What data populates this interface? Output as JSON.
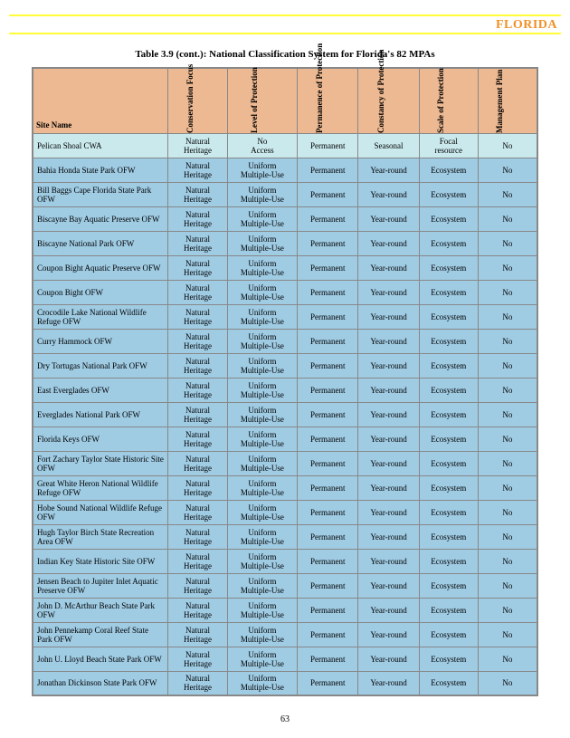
{
  "header": {
    "state": "FLORIDA"
  },
  "caption": "Table 3.9 (cont.): National Classification System for Florida's 82 MPAs",
  "columns": [
    "Site Name",
    "Conservation Focus",
    "Level of Protection",
    "Permanence of Protection",
    "Constancy of Protection",
    "Scale of Protection",
    "Management Plan"
  ],
  "rows": [
    {
      "highlight": true,
      "c": [
        "Pelican Shoal CWA",
        "Natural Heritage",
        "No Access",
        "Permanent",
        "Seasonal",
        "Focal resource",
        "No"
      ]
    },
    {
      "c": [
        "Bahia Honda State Park OFW",
        "Natural Heritage",
        "Uniform Multiple-Use",
        "Permanent",
        "Year-round",
        "Ecosystem",
        "No"
      ]
    },
    {
      "c": [
        "Bill Baggs Cape Florida State Park OFW",
        "Natural Heritage",
        "Uniform Multiple-Use",
        "Permanent",
        "Year-round",
        "Ecosystem",
        "No"
      ]
    },
    {
      "c": [
        "Biscayne Bay Aquatic Preserve OFW",
        "Natural Heritage",
        "Uniform Multiple-Use",
        "Permanent",
        "Year-round",
        "Ecosystem",
        "No"
      ]
    },
    {
      "c": [
        "Biscayne National Park OFW",
        "Natural Heritage",
        "Uniform Multiple-Use",
        "Permanent",
        "Year-round",
        "Ecosystem",
        "No"
      ]
    },
    {
      "c": [
        "Coupon Bight Aquatic Preserve OFW",
        "Natural Heritage",
        "Uniform Multiple-Use",
        "Permanent",
        "Year-round",
        "Ecosystem",
        "No"
      ]
    },
    {
      "c": [
        "Coupon Bight OFW",
        "Natural Heritage",
        "Uniform Multiple-Use",
        "Permanent",
        "Year-round",
        "Ecosystem",
        "No"
      ]
    },
    {
      "c": [
        "Crocodile Lake National Wildlife Refuge OFW",
        "Natural Heritage",
        "Uniform Multiple-Use",
        "Permanent",
        "Year-round",
        "Ecosystem",
        "No"
      ]
    },
    {
      "c": [
        "Curry Hammock OFW",
        "Natural Heritage",
        "Uniform Multiple-Use",
        "Permanent",
        "Year-round",
        "Ecosystem",
        "No"
      ]
    },
    {
      "c": [
        "Dry Tortugas National Park OFW",
        "Natural Heritage",
        "Uniform Multiple-Use",
        "Permanent",
        "Year-round",
        "Ecosystem",
        "No"
      ]
    },
    {
      "c": [
        "East Everglades OFW",
        "Natural Heritage",
        "Uniform Multiple-Use",
        "Permanent",
        "Year-round",
        "Ecosystem",
        "No"
      ]
    },
    {
      "c": [
        "Everglades National Park OFW",
        "Natural Heritage",
        "Uniform Multiple-Use",
        "Permanent",
        "Year-round",
        "Ecosystem",
        "No"
      ]
    },
    {
      "c": [
        "Florida Keys OFW",
        "Natural Heritage",
        "Uniform Multiple-Use",
        "Permanent",
        "Year-round",
        "Ecosystem",
        "No"
      ]
    },
    {
      "c": [
        "Fort Zachary Taylor State Historic Site OFW",
        "Natural Heritage",
        "Uniform Multiple-Use",
        "Permanent",
        "Year-round",
        "Ecosystem",
        "No"
      ]
    },
    {
      "c": [
        "Great White Heron National Wildlife Refuge OFW",
        "Natural Heritage",
        "Uniform Multiple-Use",
        "Permanent",
        "Year-round",
        "Ecosystem",
        "No"
      ]
    },
    {
      "c": [
        "Hobe Sound National Wildlife Refuge OFW",
        "Natural Heritage",
        "Uniform Multiple-Use",
        "Permanent",
        "Year-round",
        "Ecosystem",
        "No"
      ]
    },
    {
      "c": [
        "Hugh Taylor Birch State Recreation Area OFW",
        "Natural Heritage",
        "Uniform Multiple-Use",
        "Permanent",
        "Year-round",
        "Ecosystem",
        "No"
      ]
    },
    {
      "c": [
        "Indian Key State Historic Site OFW",
        "Natural Heritage",
        "Uniform Multiple-Use",
        "Permanent",
        "Year-round",
        "Ecosystem",
        "No"
      ]
    },
    {
      "c": [
        "Jensen Beach to Jupiter Inlet Aquatic Preserve OFW",
        "Natural Heritage",
        "Uniform Multiple-Use",
        "Permanent",
        "Year-round",
        "Ecosystem",
        "No"
      ]
    },
    {
      "c": [
        "John D. McArthur Beach State Park OFW",
        "Natural Heritage",
        "Uniform Multiple-Use",
        "Permanent",
        "Year-round",
        "Ecosystem",
        "No"
      ]
    },
    {
      "c": [
        "John Pennekamp Coral Reef State Park OFW",
        "Natural Heritage",
        "Uniform Multiple-Use",
        "Permanent",
        "Year-round",
        "Ecosystem",
        "No"
      ]
    },
    {
      "c": [
        "John U. Lloyd Beach State Park OFW",
        "Natural Heritage",
        "Uniform Multiple-Use",
        "Permanent",
        "Year-round",
        "Ecosystem",
        "No"
      ]
    },
    {
      "c": [
        "Jonathan Dickinson State Park OFW",
        "Natural Heritage",
        "Uniform Multiple-Use",
        "Permanent",
        "Year-round",
        "Ecosystem",
        "No"
      ]
    }
  ],
  "pagenum": "63"
}
